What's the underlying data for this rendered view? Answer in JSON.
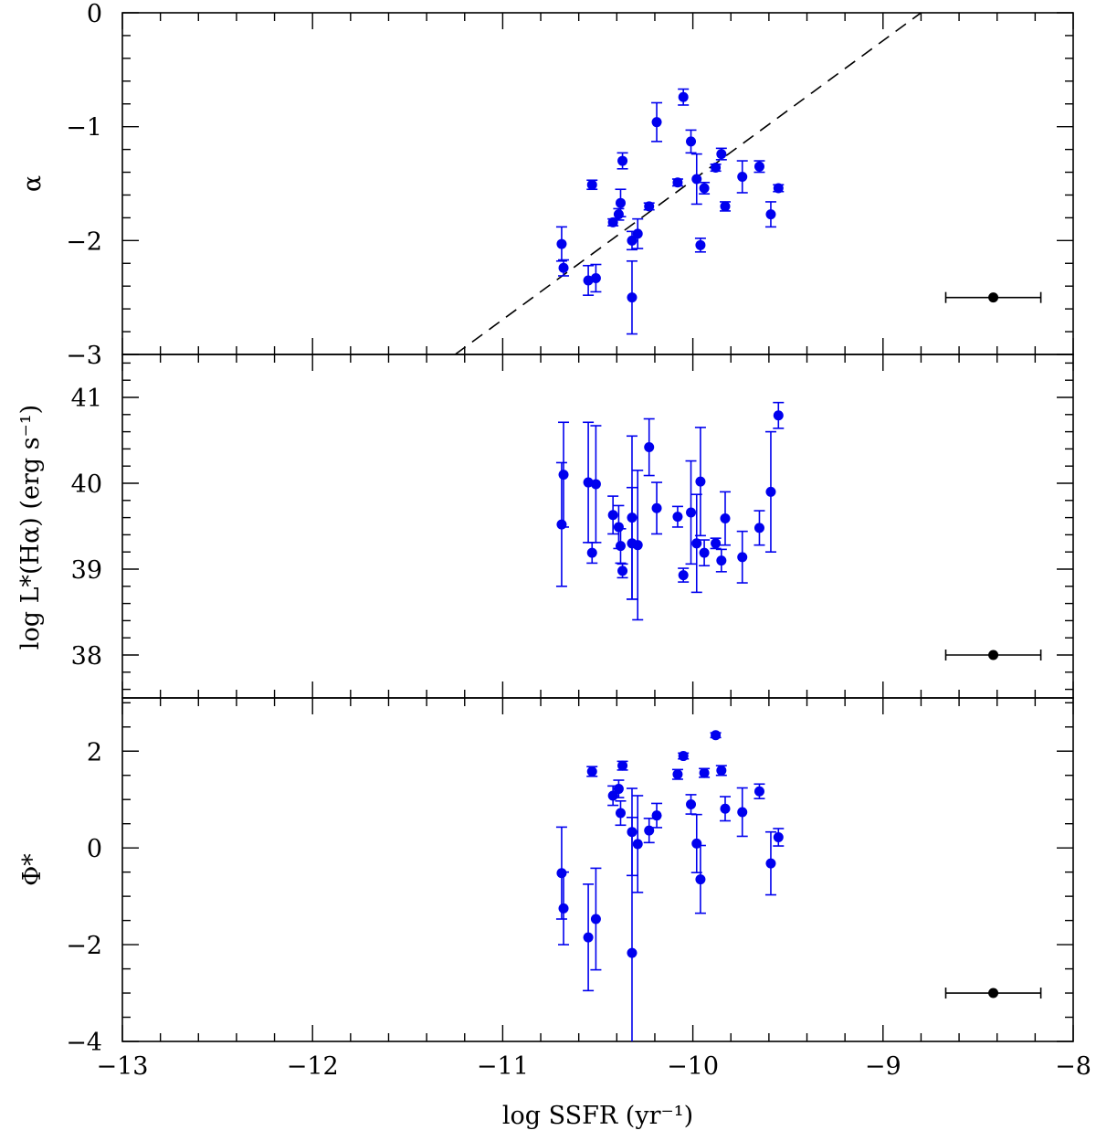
{
  "chart_data": [
    {
      "type": "scatter",
      "panel": "top",
      "ylabel": "α",
      "xlim": [
        -13,
        -8
      ],
      "ylim": [
        -3,
        0
      ],
      "yticks_labeled": [
        -3,
        -2,
        -1,
        0
      ],
      "ytick_labels": [
        "−3",
        "−2",
        "−1",
        "0"
      ],
      "reference_line": {
        "style": "dashed",
        "points": [
          [
            -11.25,
            -3.0
          ],
          [
            -8.8,
            0.0
          ]
        ]
      },
      "representative_error": {
        "x": -8.42,
        "y": -2.5,
        "xerr": 0.25
      },
      "series": [
        {
          "color": "#0000ee",
          "points": [
            [
              -10.69,
              -2.03,
              0.15
            ],
            [
              -10.68,
              -2.24,
              0.07
            ],
            [
              -10.55,
              -2.35,
              0.13
            ],
            [
              -10.53,
              -1.51,
              0.04
            ],
            [
              -10.51,
              -2.33,
              0.12
            ],
            [
              -10.42,
              -1.84,
              0.03
            ],
            [
              -10.39,
              -1.77,
              0.05
            ],
            [
              -10.38,
              -1.67,
              0.12
            ],
            [
              -10.37,
              -1.3,
              0.07
            ],
            [
              -10.32,
              -2.5,
              0.32
            ],
            [
              -10.32,
              -2.0,
              0.08
            ],
            [
              -10.29,
              -1.94,
              0.13
            ],
            [
              -10.23,
              -1.7,
              0.03
            ],
            [
              -10.19,
              -0.96,
              0.17
            ],
            [
              -10.08,
              -1.49,
              0.03
            ],
            [
              -10.05,
              -0.74,
              0.07
            ],
            [
              -10.01,
              -1.13,
              0.1
            ],
            [
              -9.98,
              -1.46,
              0.22
            ],
            [
              -9.96,
              -2.04,
              0.06
            ],
            [
              -9.94,
              -1.54,
              0.05
            ],
            [
              -9.88,
              -1.36,
              0.03
            ],
            [
              -9.85,
              -1.24,
              0.05
            ],
            [
              -9.83,
              -1.7,
              0.04
            ],
            [
              -9.74,
              -1.44,
              0.14
            ],
            [
              -9.65,
              -1.35,
              0.05
            ],
            [
              -9.59,
              -1.77,
              0.11
            ],
            [
              -9.55,
              -1.54,
              0.03
            ]
          ]
        }
      ]
    },
    {
      "type": "scatter",
      "panel": "middle",
      "ylabel": "log L*(Hα)   (erg s⁻¹)",
      "xlim": [
        -13,
        -8
      ],
      "ylim": [
        37.5,
        41.5
      ],
      "yticks_labeled": [
        38,
        39,
        40,
        41
      ],
      "ytick_labels": [
        "38",
        "39",
        "40",
        "41"
      ],
      "representative_error": {
        "x": -8.42,
        "y": 38.0,
        "xerr": 0.25
      },
      "series": [
        {
          "color": "#0000ee",
          "points": [
            [
              -10.69,
              39.52,
              0.72
            ],
            [
              -10.68,
              40.1,
              0.61
            ],
            [
              -10.55,
              40.01,
              0.7
            ],
            [
              -10.53,
              39.19,
              0.12
            ],
            [
              -10.51,
              39.99,
              0.68
            ],
            [
              -10.42,
              39.63,
              0.22
            ],
            [
              -10.39,
              39.49,
              0.25
            ],
            [
              -10.38,
              39.27,
              0.2
            ],
            [
              -10.37,
              38.98,
              0.08
            ],
            [
              -10.32,
              39.6,
              0.95
            ],
            [
              -10.32,
              39.3,
              0.65
            ],
            [
              -10.29,
              39.28,
              0.87
            ],
            [
              -10.23,
              40.42,
              0.33
            ],
            [
              -10.19,
              39.71,
              0.3
            ],
            [
              -10.08,
              39.61,
              0.12
            ],
            [
              -10.05,
              38.93,
              0.08
            ],
            [
              -10.01,
              39.66,
              0.6
            ],
            [
              -9.98,
              39.3,
              0.57
            ],
            [
              -9.96,
              40.02,
              0.63
            ],
            [
              -9.94,
              39.19,
              0.15
            ],
            [
              -9.88,
              39.3,
              0.06
            ],
            [
              -9.85,
              39.1,
              0.13
            ],
            [
              -9.83,
              39.59,
              0.31
            ],
            [
              -9.74,
              39.14,
              0.3
            ],
            [
              -9.65,
              39.48,
              0.2
            ],
            [
              -9.59,
              39.9,
              0.7
            ],
            [
              -9.55,
              40.79,
              0.15
            ]
          ]
        }
      ]
    },
    {
      "type": "scatter",
      "panel": "bottom",
      "xlabel": "log SSFR   (yr⁻¹)",
      "ylabel": "Φ*",
      "xlim": [
        -13,
        -8
      ],
      "ylim": [
        -4,
        3.1
      ],
      "xticks_labeled": [
        -13,
        -12,
        -11,
        -10,
        -9,
        -8
      ],
      "xtick_labels": [
        "−13",
        "−12",
        "−11",
        "−10",
        "−9",
        "−8"
      ],
      "yticks_labeled": [
        -4,
        -2,
        0,
        2
      ],
      "ytick_labels": [
        "−4",
        "−2",
        "0",
        "2"
      ],
      "representative_error": {
        "x": -8.42,
        "y": -3.0,
        "xerr": 0.25
      },
      "series": [
        {
          "color": "#0000ee",
          "points": [
            [
              -10.69,
              -0.52,
              0.95
            ],
            [
              -10.68,
              -1.25,
              0.75
            ],
            [
              -10.55,
              -1.85,
              1.1
            ],
            [
              -10.53,
              1.58,
              0.1
            ],
            [
              -10.51,
              -1.47,
              1.05
            ],
            [
              -10.42,
              1.08,
              0.2
            ],
            [
              -10.39,
              1.22,
              0.18
            ],
            [
              -10.38,
              0.72,
              0.25
            ],
            [
              -10.37,
              1.7,
              0.09
            ],
            [
              -10.32,
              -2.17,
              2.8
            ],
            [
              -10.32,
              0.33,
              0.9
            ],
            [
              -10.29,
              0.08,
              1.0
            ],
            [
              -10.23,
              0.36,
              0.25
            ],
            [
              -10.19,
              0.67,
              0.25
            ],
            [
              -10.08,
              1.52,
              0.1
            ],
            [
              -10.05,
              1.9,
              0.06
            ],
            [
              -10.01,
              0.9,
              0.2
            ],
            [
              -9.98,
              0.09,
              0.6
            ],
            [
              -9.96,
              -0.65,
              0.7
            ],
            [
              -9.94,
              1.55,
              0.09
            ],
            [
              -9.88,
              2.33,
              0.05
            ],
            [
              -9.85,
              1.6,
              0.1
            ],
            [
              -9.83,
              0.81,
              0.25
            ],
            [
              -9.74,
              0.74,
              0.5
            ],
            [
              -9.65,
              1.17,
              0.15
            ],
            [
              -9.59,
              -0.32,
              0.65
            ],
            [
              -9.55,
              0.22,
              0.18
            ]
          ]
        }
      ]
    }
  ]
}
